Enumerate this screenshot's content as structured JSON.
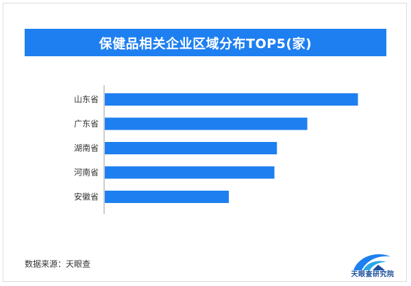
{
  "chart_data": {
    "type": "bar",
    "orientation": "horizontal",
    "title": "保健品相关企业区域分布TOP5(家)",
    "categories": [
      "山东省",
      "广东省",
      "湖南省",
      "河南省",
      "安徽省"
    ],
    "values": [
      100,
      80,
      68,
      67,
      49
    ],
    "xlim": [
      0,
      105
    ],
    "grid": false,
    "bar_color": "#1e7ff0",
    "axis_color": "#9a9a9a"
  },
  "footer": {
    "source": "数据来源：天眼查",
    "brand": "天眼查研究院"
  }
}
